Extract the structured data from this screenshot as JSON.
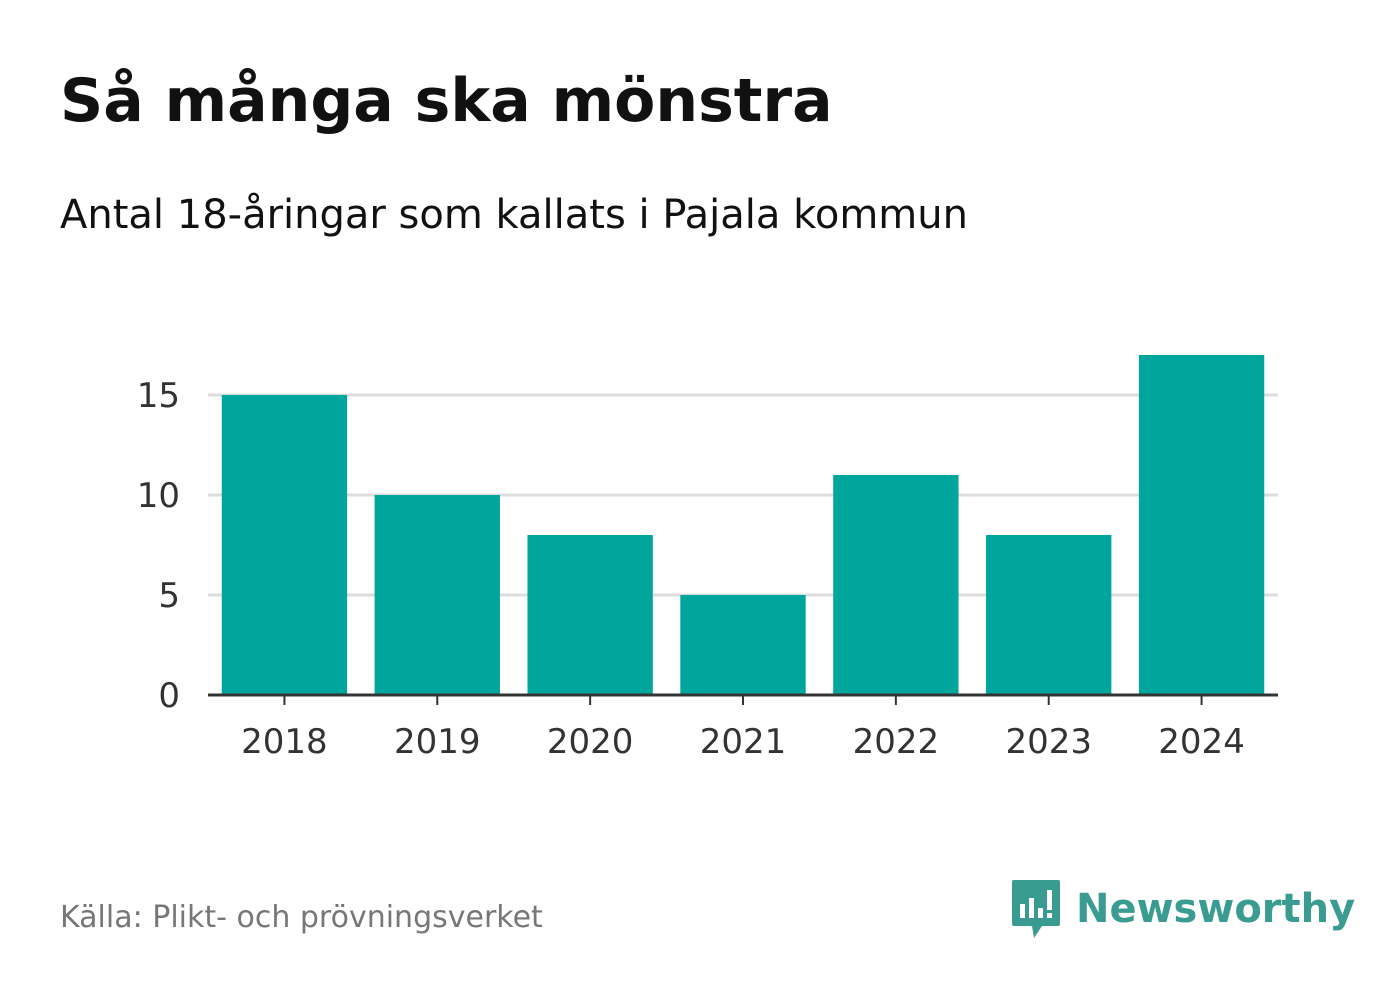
{
  "title": "Så många ska mönstra",
  "subtitle": "Antal 18-åringar som kallats i Pajala kommun",
  "source": "Källa: Plikt- och prövningsverket",
  "brand": {
    "name": "Newsworthy",
    "color": "#3a9c90",
    "icon": "newsworthy-logo-icon"
  },
  "chart_data": {
    "type": "bar",
    "title": "Så många ska mönstra",
    "subtitle": "Antal 18-åringar som kallats i Pajala kommun",
    "categories": [
      "2018",
      "2019",
      "2020",
      "2021",
      "2022",
      "2023",
      "2024"
    ],
    "values": [
      15,
      10,
      8,
      5,
      11,
      8,
      17
    ],
    "ylim": [
      0,
      17
    ],
    "yticks": [
      0,
      5,
      10,
      15
    ],
    "grid": true,
    "bar_color": "#00a59b",
    "grid_color": "#dddddd",
    "axis_color": "#333333"
  }
}
